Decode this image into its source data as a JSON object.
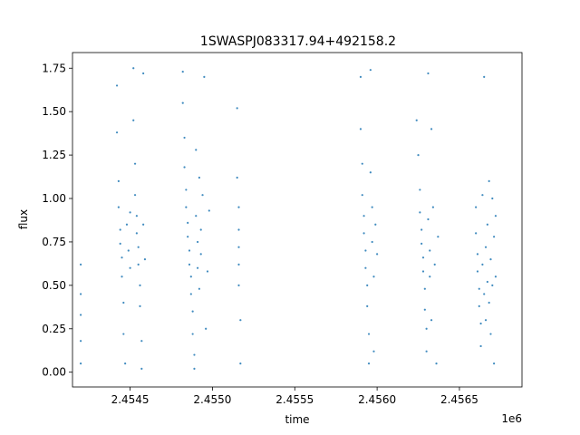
{
  "chart_data": {
    "type": "scatter",
    "title": "1SWASPJ083317.94+492158.2",
    "xlabel": "time",
    "ylabel": "flux",
    "x_offset_label": "1e6",
    "xlim": [
      2.45415,
      2.45688
    ],
    "ylim": [
      -0.085,
      1.84
    ],
    "x_ticks": [
      2.4545,
      2.455,
      2.4555,
      2.456,
      2.4565
    ],
    "x_tick_labels": [
      "2.4545",
      "2.4550",
      "2.4555",
      "2.4560",
      "2.4565"
    ],
    "y_ticks": [
      0.0,
      0.25,
      0.5,
      0.75,
      1.0,
      1.25,
      1.5,
      1.75
    ],
    "y_tick_labels": [
      "0.00",
      "0.25",
      "0.50",
      "0.75",
      "1.00",
      "1.25",
      "1.50",
      "1.75"
    ],
    "marker_color": "#1f77b4",
    "grid": false,
    "series": [
      {
        "points": [
          [
            2.4542,
            0.62
          ],
          [
            2.4542,
            0.45
          ],
          [
            2.4542,
            0.33
          ],
          [
            2.4542,
            0.18
          ],
          [
            2.4542,
            0.05
          ],
          [
            2.45442,
            1.65
          ],
          [
            2.45442,
            1.38
          ],
          [
            2.45443,
            1.1
          ],
          [
            2.45443,
            0.95
          ],
          [
            2.45444,
            0.82
          ],
          [
            2.45444,
            0.74
          ],
          [
            2.45445,
            0.66
          ],
          [
            2.45445,
            0.55
          ],
          [
            2.45446,
            0.4
          ],
          [
            2.45446,
            0.22
          ],
          [
            2.45447,
            0.05
          ],
          [
            2.45448,
            0.85
          ],
          [
            2.45449,
            0.7
          ],
          [
            2.4545,
            0.6
          ],
          [
            2.4545,
            0.92
          ],
          [
            2.45452,
            1.75
          ],
          [
            2.45452,
            1.45
          ],
          [
            2.45453,
            1.2
          ],
          [
            2.45453,
            1.02
          ],
          [
            2.45454,
            0.9
          ],
          [
            2.45454,
            0.8
          ],
          [
            2.45455,
            0.72
          ],
          [
            2.45455,
            0.62
          ],
          [
            2.45456,
            0.5
          ],
          [
            2.45456,
            0.38
          ],
          [
            2.45457,
            0.18
          ],
          [
            2.45457,
            0.02
          ],
          [
            2.45458,
            1.72
          ],
          [
            2.45458,
            0.85
          ],
          [
            2.45459,
            0.65
          ],
          [
            2.45482,
            1.73
          ],
          [
            2.45482,
            1.55
          ],
          [
            2.45483,
            1.35
          ],
          [
            2.45483,
            1.18
          ],
          [
            2.45484,
            1.05
          ],
          [
            2.45484,
            0.95
          ],
          [
            2.45485,
            0.86
          ],
          [
            2.45485,
            0.78
          ],
          [
            2.45486,
            0.7
          ],
          [
            2.45486,
            0.62
          ],
          [
            2.45487,
            0.55
          ],
          [
            2.45487,
            0.45
          ],
          [
            2.45488,
            0.35
          ],
          [
            2.45488,
            0.22
          ],
          [
            2.45489,
            0.1
          ],
          [
            2.45489,
            0.02
          ],
          [
            2.4549,
            1.28
          ],
          [
            2.4549,
            0.9
          ],
          [
            2.45491,
            0.75
          ],
          [
            2.45491,
            0.6
          ],
          [
            2.45492,
            1.12
          ],
          [
            2.45492,
            0.48
          ],
          [
            2.45493,
            0.82
          ],
          [
            2.45493,
            0.68
          ],
          [
            2.45494,
            1.02
          ],
          [
            2.45495,
            1.7
          ],
          [
            2.45496,
            0.25
          ],
          [
            2.45497,
            0.58
          ],
          [
            2.45498,
            0.93
          ],
          [
            2.45515,
            1.52
          ],
          [
            2.45515,
            1.12
          ],
          [
            2.45516,
            0.95
          ],
          [
            2.45516,
            0.82
          ],
          [
            2.45516,
            0.72
          ],
          [
            2.45516,
            0.62
          ],
          [
            2.45516,
            0.5
          ],
          [
            2.45517,
            0.3
          ],
          [
            2.45517,
            0.05
          ],
          [
            2.4559,
            1.7
          ],
          [
            2.4559,
            1.4
          ],
          [
            2.45591,
            1.2
          ],
          [
            2.45591,
            1.02
          ],
          [
            2.45592,
            0.9
          ],
          [
            2.45592,
            0.8
          ],
          [
            2.45593,
            0.7
          ],
          [
            2.45593,
            0.6
          ],
          [
            2.45594,
            0.5
          ],
          [
            2.45594,
            0.38
          ],
          [
            2.45595,
            0.22
          ],
          [
            2.45595,
            0.05
          ],
          [
            2.45596,
            1.74
          ],
          [
            2.45596,
            1.15
          ],
          [
            2.45597,
            0.95
          ],
          [
            2.45597,
            0.75
          ],
          [
            2.45598,
            0.55
          ],
          [
            2.45598,
            0.12
          ],
          [
            2.45599,
            0.85
          ],
          [
            2.456,
            0.68
          ],
          [
            2.45624,
            1.45
          ],
          [
            2.45625,
            1.25
          ],
          [
            2.45626,
            1.05
          ],
          [
            2.45626,
            0.92
          ],
          [
            2.45627,
            0.82
          ],
          [
            2.45627,
            0.74
          ],
          [
            2.45628,
            0.66
          ],
          [
            2.45628,
            0.58
          ],
          [
            2.45629,
            0.48
          ],
          [
            2.45629,
            0.36
          ],
          [
            2.4563,
            0.25
          ],
          [
            2.4563,
            0.12
          ],
          [
            2.45631,
            1.72
          ],
          [
            2.45631,
            0.88
          ],
          [
            2.45632,
            0.7
          ],
          [
            2.45632,
            0.55
          ],
          [
            2.45633,
            1.4
          ],
          [
            2.45633,
            0.3
          ],
          [
            2.45634,
            0.95
          ],
          [
            2.45635,
            0.62
          ],
          [
            2.45636,
            0.05
          ],
          [
            2.45637,
            0.78
          ],
          [
            2.4566,
            0.95
          ],
          [
            2.4566,
            0.8
          ],
          [
            2.45661,
            0.68
          ],
          [
            2.45661,
            0.58
          ],
          [
            2.45662,
            0.48
          ],
          [
            2.45662,
            0.38
          ],
          [
            2.45663,
            0.28
          ],
          [
            2.45663,
            0.15
          ],
          [
            2.45664,
            1.02
          ],
          [
            2.45664,
            0.62
          ],
          [
            2.45665,
            1.7
          ],
          [
            2.45665,
            0.45
          ],
          [
            2.45666,
            0.72
          ],
          [
            2.45666,
            0.3
          ],
          [
            2.45667,
            0.85
          ],
          [
            2.45667,
            0.52
          ],
          [
            2.45668,
            1.1
          ],
          [
            2.45668,
            0.4
          ],
          [
            2.45669,
            0.65
          ],
          [
            2.45669,
            0.22
          ],
          [
            2.4567,
            1.0
          ],
          [
            2.4567,
            0.5
          ],
          [
            2.45671,
            0.78
          ],
          [
            2.45671,
            0.05
          ],
          [
            2.45672,
            0.9
          ],
          [
            2.45672,
            0.55
          ]
        ]
      }
    ]
  }
}
